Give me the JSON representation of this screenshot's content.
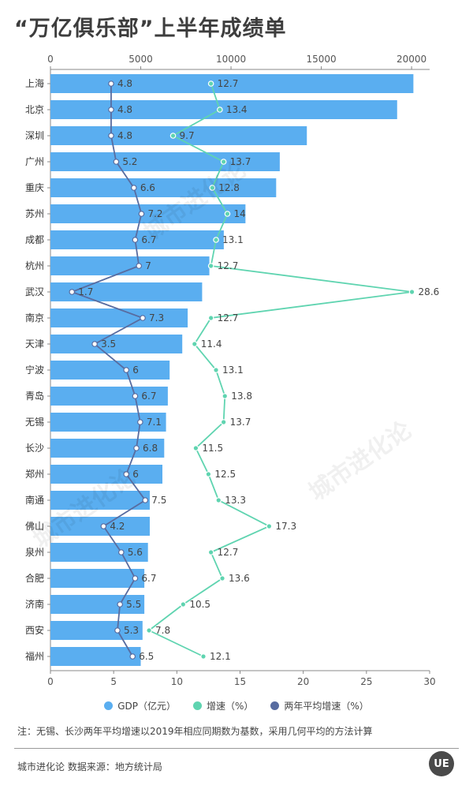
{
  "title": "“万亿俱乐部”上半年成绩单",
  "watermark": "城市进化论",
  "chart_data": {
    "type": "bar",
    "categories": [
      "上海",
      "北京",
      "深圳",
      "广州",
      "重庆",
      "苏州",
      "成都",
      "杭州",
      "武汉",
      "南京",
      "天津",
      "宁波",
      "青岛",
      "无锡",
      "长沙",
      "郑州",
      "南通",
      "佛山",
      "泉州",
      "合肥",
      "济南",
      "西安",
      "福州"
    ],
    "series": [
      {
        "name": "GDP（亿元）",
        "axis": "top",
        "type": "bar",
        "color": "#5aaef0",
        "values": [
          20100,
          19200,
          14200,
          12700,
          12500,
          10800,
          9600,
          8800,
          8400,
          7600,
          7300,
          6600,
          6500,
          6400,
          6300,
          6200,
          5500,
          5500,
          5400,
          5200,
          5200,
          5100,
          5000
        ]
      },
      {
        "name": "增速（%）",
        "axis": "bottom",
        "type": "line",
        "color": "#5fd4b0",
        "values": [
          12.7,
          13.4,
          9.7,
          13.7,
          12.8,
          14,
          13.1,
          12.7,
          28.6,
          12.7,
          11.4,
          13.1,
          13.8,
          13.7,
          11.5,
          12.5,
          13.3,
          17.3,
          12.7,
          13.6,
          10.5,
          7.8,
          12.1
        ]
      },
      {
        "name": "两年平均增速（%）",
        "axis": "bottom",
        "type": "line",
        "color": "#586ca0",
        "values": [
          4.8,
          4.8,
          4.8,
          5.2,
          6.6,
          7.2,
          6.7,
          7,
          1.7,
          7.3,
          3.5,
          6,
          6.7,
          7.1,
          6.8,
          6,
          7.5,
          4.2,
          5.6,
          6.7,
          5.5,
          5.3,
          6.5
        ]
      }
    ],
    "top_axis": {
      "range": [
        0,
        21000
      ],
      "ticks": [
        0,
        5000,
        10000,
        15000,
        20000
      ]
    },
    "bottom_axis": {
      "range": [
        0,
        30
      ],
      "ticks": [
        0,
        5,
        10,
        15,
        20,
        25,
        30
      ]
    },
    "legend_position": "bottom"
  },
  "note": "注：无锡、长沙两年平均增速以2019年相应同期数为基数，采用几何平均的方法计算",
  "footer": "城市进化论  数据来源：地方统计局",
  "logo_text": "UE"
}
